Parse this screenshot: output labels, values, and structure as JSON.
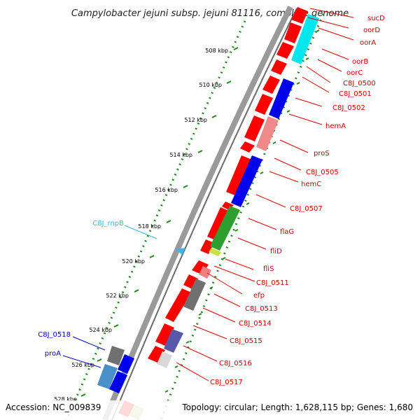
{
  "title": "Campylobacter jejuni subsp. jejuni 81116, complete genome",
  "footer": {
    "accession": "Accession: NC_009839",
    "summary": "Topology: circular; Length: 1,628,115 bp; Genes: 1,680"
  },
  "ticks": [
    "508 kbp",
    "510 kbp",
    "512 kbp",
    "514 kbp",
    "516 kbp",
    "518 kbp",
    "520 kbp",
    "522 kbp",
    "524 kbp",
    "526 kbp",
    "528 kbp"
  ],
  "right_labels": [
    "sucD",
    "oorD",
    "oorA",
    "oorB",
    "oorC",
    "C8J_0500",
    "C8J_0501",
    "C8J_0502",
    "hemA",
    "proS",
    "C8J_0505",
    "hemC",
    "C8J_0507",
    "flaG",
    "fliD",
    "fliS",
    "C8J_0511",
    "efp",
    "C8J_0513",
    "C8J_0514",
    "C8J_0515",
    "C8J_0516",
    "C8J_0517"
  ],
  "left_labels": [
    "C8J_rnpB",
    "C8J_0518",
    "proA"
  ],
  "colors": {
    "red": "#ff0000",
    "blue": "#0000ee",
    "cyan": "#00ffff",
    "green": "#2a9a2a",
    "pink": "#f08080",
    "gray": "#707070",
    "label_red": "#cc0000",
    "label_blue": "#0000cc",
    "label_cyan": "#33bbdd",
    "tick_green": "#228822"
  }
}
